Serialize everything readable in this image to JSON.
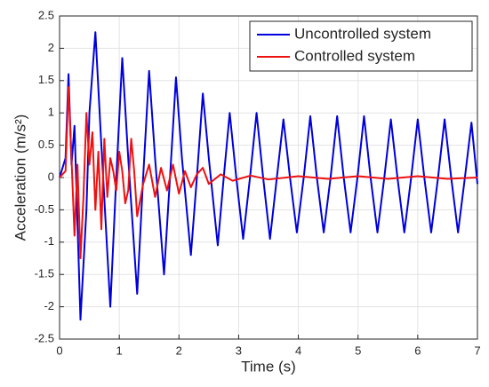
{
  "chart_data": {
    "type": "line",
    "xlabel": "Time (s)",
    "ylabel": "Acceleration (m/s²)",
    "xlim": [
      0,
      7
    ],
    "xticks": [
      0,
      1,
      2,
      3,
      4,
      5,
      6,
      7
    ],
    "ylim": [
      -2.5,
      2.5
    ],
    "yticks": [
      -2.5,
      -2,
      -1.5,
      -1,
      -0.5,
      0,
      0.5,
      1,
      1.5,
      2,
      2.5
    ],
    "grid": true,
    "legend": "upper right",
    "series": [
      {
        "name": "Uncontrolled system",
        "color": "#0000dd",
        "x": [
          0,
          0.1,
          0.15,
          0.2,
          0.25,
          0.35,
          0.45,
          0.5,
          0.6,
          0.7,
          0.85,
          0.95,
          1.05,
          1.15,
          1.3,
          1.4,
          1.5,
          1.6,
          1.75,
          1.85,
          1.95,
          2.05,
          2.2,
          2.3,
          2.4,
          2.5,
          2.65,
          2.75,
          2.85,
          2.96,
          3.075,
          3.19,
          3.3,
          3.41,
          3.525,
          3.64,
          3.75,
          3.86,
          3.975,
          4.09,
          4.2,
          4.31,
          4.425,
          4.54,
          4.65,
          4.76,
          4.875,
          4.99,
          5.1,
          5.21,
          5.325,
          5.44,
          5.55,
          5.66,
          5.775,
          5.89,
          6.0,
          6.11,
          6.225,
          6.34,
          6.45,
          6.56,
          6.675,
          6.79,
          6.9,
          7.0
        ],
        "values": [
          0,
          0.3,
          1.6,
          0.2,
          0.8,
          -2.2,
          -0.5,
          1.0,
          2.25,
          0.5,
          -2.0,
          0,
          1.85,
          0.3,
          -1.8,
          0,
          1.65,
          0.3,
          -1.5,
          0,
          1.55,
          0.3,
          -1.2,
          0,
          1.3,
          0.3,
          -1.05,
          0,
          1.0,
          0,
          -0.95,
          0,
          1.0,
          0,
          -0.95,
          0,
          0.9,
          0,
          -0.85,
          0,
          0.95,
          0,
          -0.85,
          0,
          0.95,
          0,
          -0.85,
          0,
          0.95,
          0,
          -0.85,
          0,
          0.9,
          0,
          -0.85,
          0,
          0.9,
          0,
          -0.85,
          0,
          0.9,
          0,
          -0.85,
          0,
          0.85,
          -0.1
        ]
      },
      {
        "name": "Controlled system",
        "color": "#ee1111",
        "x": [
          0,
          0.1,
          0.15,
          0.2,
          0.25,
          0.3,
          0.35,
          0.4,
          0.45,
          0.5,
          0.55,
          0.6,
          0.65,
          0.7,
          0.75,
          0.8,
          0.85,
          0.9,
          0.95,
          1.0,
          1.05,
          1.1,
          1.15,
          1.2,
          1.25,
          1.3,
          1.4,
          1.5,
          1.6,
          1.7,
          1.8,
          1.9,
          2.0,
          2.1,
          2.2,
          2.3,
          2.4,
          2.5,
          2.7,
          2.9,
          3.2,
          3.5,
          4.0,
          4.5,
          5.0,
          5.5,
          6.0,
          6.5,
          7.0
        ],
        "values": [
          0,
          0.1,
          1.4,
          0.3,
          -0.9,
          0.2,
          -1.25,
          -0.3,
          1.0,
          0.2,
          0.7,
          -0.5,
          0.4,
          -0.8,
          0.6,
          -0.3,
          0.3,
          0.1,
          -0.2,
          0.4,
          0.1,
          -0.4,
          -0.2,
          0.6,
          0.1,
          -0.6,
          -0.1,
          0.2,
          -0.3,
          0.15,
          -0.2,
          0.2,
          -0.25,
          0.1,
          -0.15,
          0.05,
          0.15,
          -0.1,
          0.05,
          -0.05,
          0.03,
          -0.03,
          0.02,
          -0.02,
          0.02,
          -0.02,
          0.02,
          -0.02,
          0
        ]
      }
    ]
  }
}
